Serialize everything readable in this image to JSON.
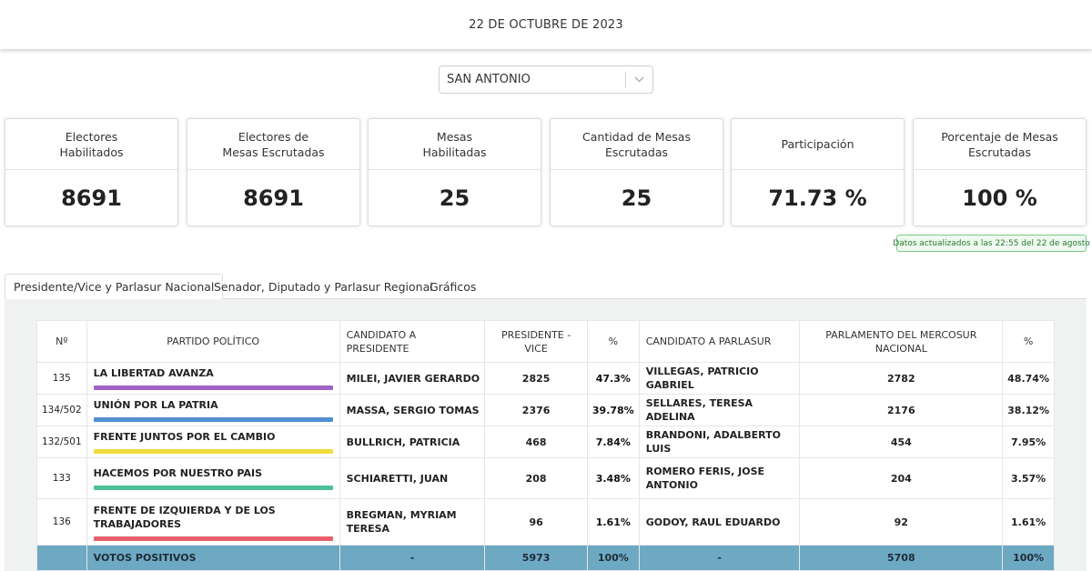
{
  "header": {
    "date": "22 DE OCTUBRE DE 2023"
  },
  "location_select": {
    "value": "SAN ANTONIO",
    "icon": "chevron-down-icon"
  },
  "cards": [
    {
      "label": "Electores\nHabilitados",
      "value": "8691"
    },
    {
      "label": "Electores de\nMesas Escrutadas",
      "value": "8691"
    },
    {
      "label": "Mesas\nHabilitadas",
      "value": "25"
    },
    {
      "label": "Cantidad de Mesas Escrutadas",
      "value": "25"
    },
    {
      "label": "Participación",
      "value": "71.73 %"
    },
    {
      "label": "Porcentaje de Mesas Escrutadas",
      "value": "100 %"
    }
  ],
  "update_notice": "Datos actualizados a las 22:55 del 22 de agosto",
  "tabs": [
    {
      "label": "Presidente/Vice y Parlasur Nacional",
      "active": true
    },
    {
      "label": "Senador, Diputado y Parlasur Regional",
      "active": false
    },
    {
      "label": "Gráficos",
      "active": false
    }
  ],
  "table": {
    "headers": [
      "Nº",
      "PARTIDO POLÍTICO",
      "CANDIDATO A PRESIDENTE",
      "PRESIDENTE - VICE",
      "%",
      "CANDIDATO A PARLASUR",
      "PARLAMENTO DEL MERCOSUR NACIONAL",
      "%"
    ],
    "rows": [
      {
        "num": "135",
        "party": "LA LIBERTAD AVANZA",
        "color": "#a164c6",
        "president": "MILEI, JAVIER GERARDO",
        "votes": "2825",
        "pct": "47.3%",
        "parlasur": "VILLEGAS, PATRICIO GABRIEL",
        "parl_votes": "2782",
        "parl_pct": "48.74%"
      },
      {
        "num": "134/502",
        "party": "UNIÓN POR LA PATRIA",
        "color": "#4f8fd0",
        "president": "MASSA, SERGIO TOMAS",
        "votes": "2376",
        "pct": "39.78%",
        "parlasur": "SELLARES, TERESA ADELINA",
        "parl_votes": "2176",
        "parl_pct": "38.12%"
      },
      {
        "num": "132/501",
        "party": "FRENTE JUNTOS POR EL CAMBIO",
        "color": "#f2dc3a",
        "president": "BULLRICH, PATRICIA",
        "votes": "468",
        "pct": "7.84%",
        "parlasur": "BRANDONI, ADALBERTO LUIS",
        "parl_votes": "454",
        "parl_pct": "7.95%"
      },
      {
        "num": "133",
        "party": "HACEMOS POR NUESTRO PAIS",
        "color": "#4cc195",
        "president": "SCHIARETTI, JUAN",
        "votes": "208",
        "pct": "3.48%",
        "parlasur": "ROMERO FERIS, JOSE ANTONIO",
        "parl_votes": "204",
        "parl_pct": "3.57%"
      },
      {
        "num": "136",
        "party": "FRENTE DE IZQUIERDA Y DE LOS TRABAJADORES",
        "color": "#e9606c",
        "president": "BREGMAN, MYRIAM TERESA",
        "votes": "96",
        "pct": "1.61%",
        "parlasur": "GODOY, RAUL EDUARDO",
        "parl_votes": "92",
        "parl_pct": "1.61%"
      }
    ],
    "total": {
      "num": "",
      "party": "VOTOS POSITIVOS",
      "president": "-",
      "votes": "5973",
      "pct": "100%",
      "parlasur": "-",
      "parl_votes": "5708",
      "parl_pct": "100%"
    }
  }
}
